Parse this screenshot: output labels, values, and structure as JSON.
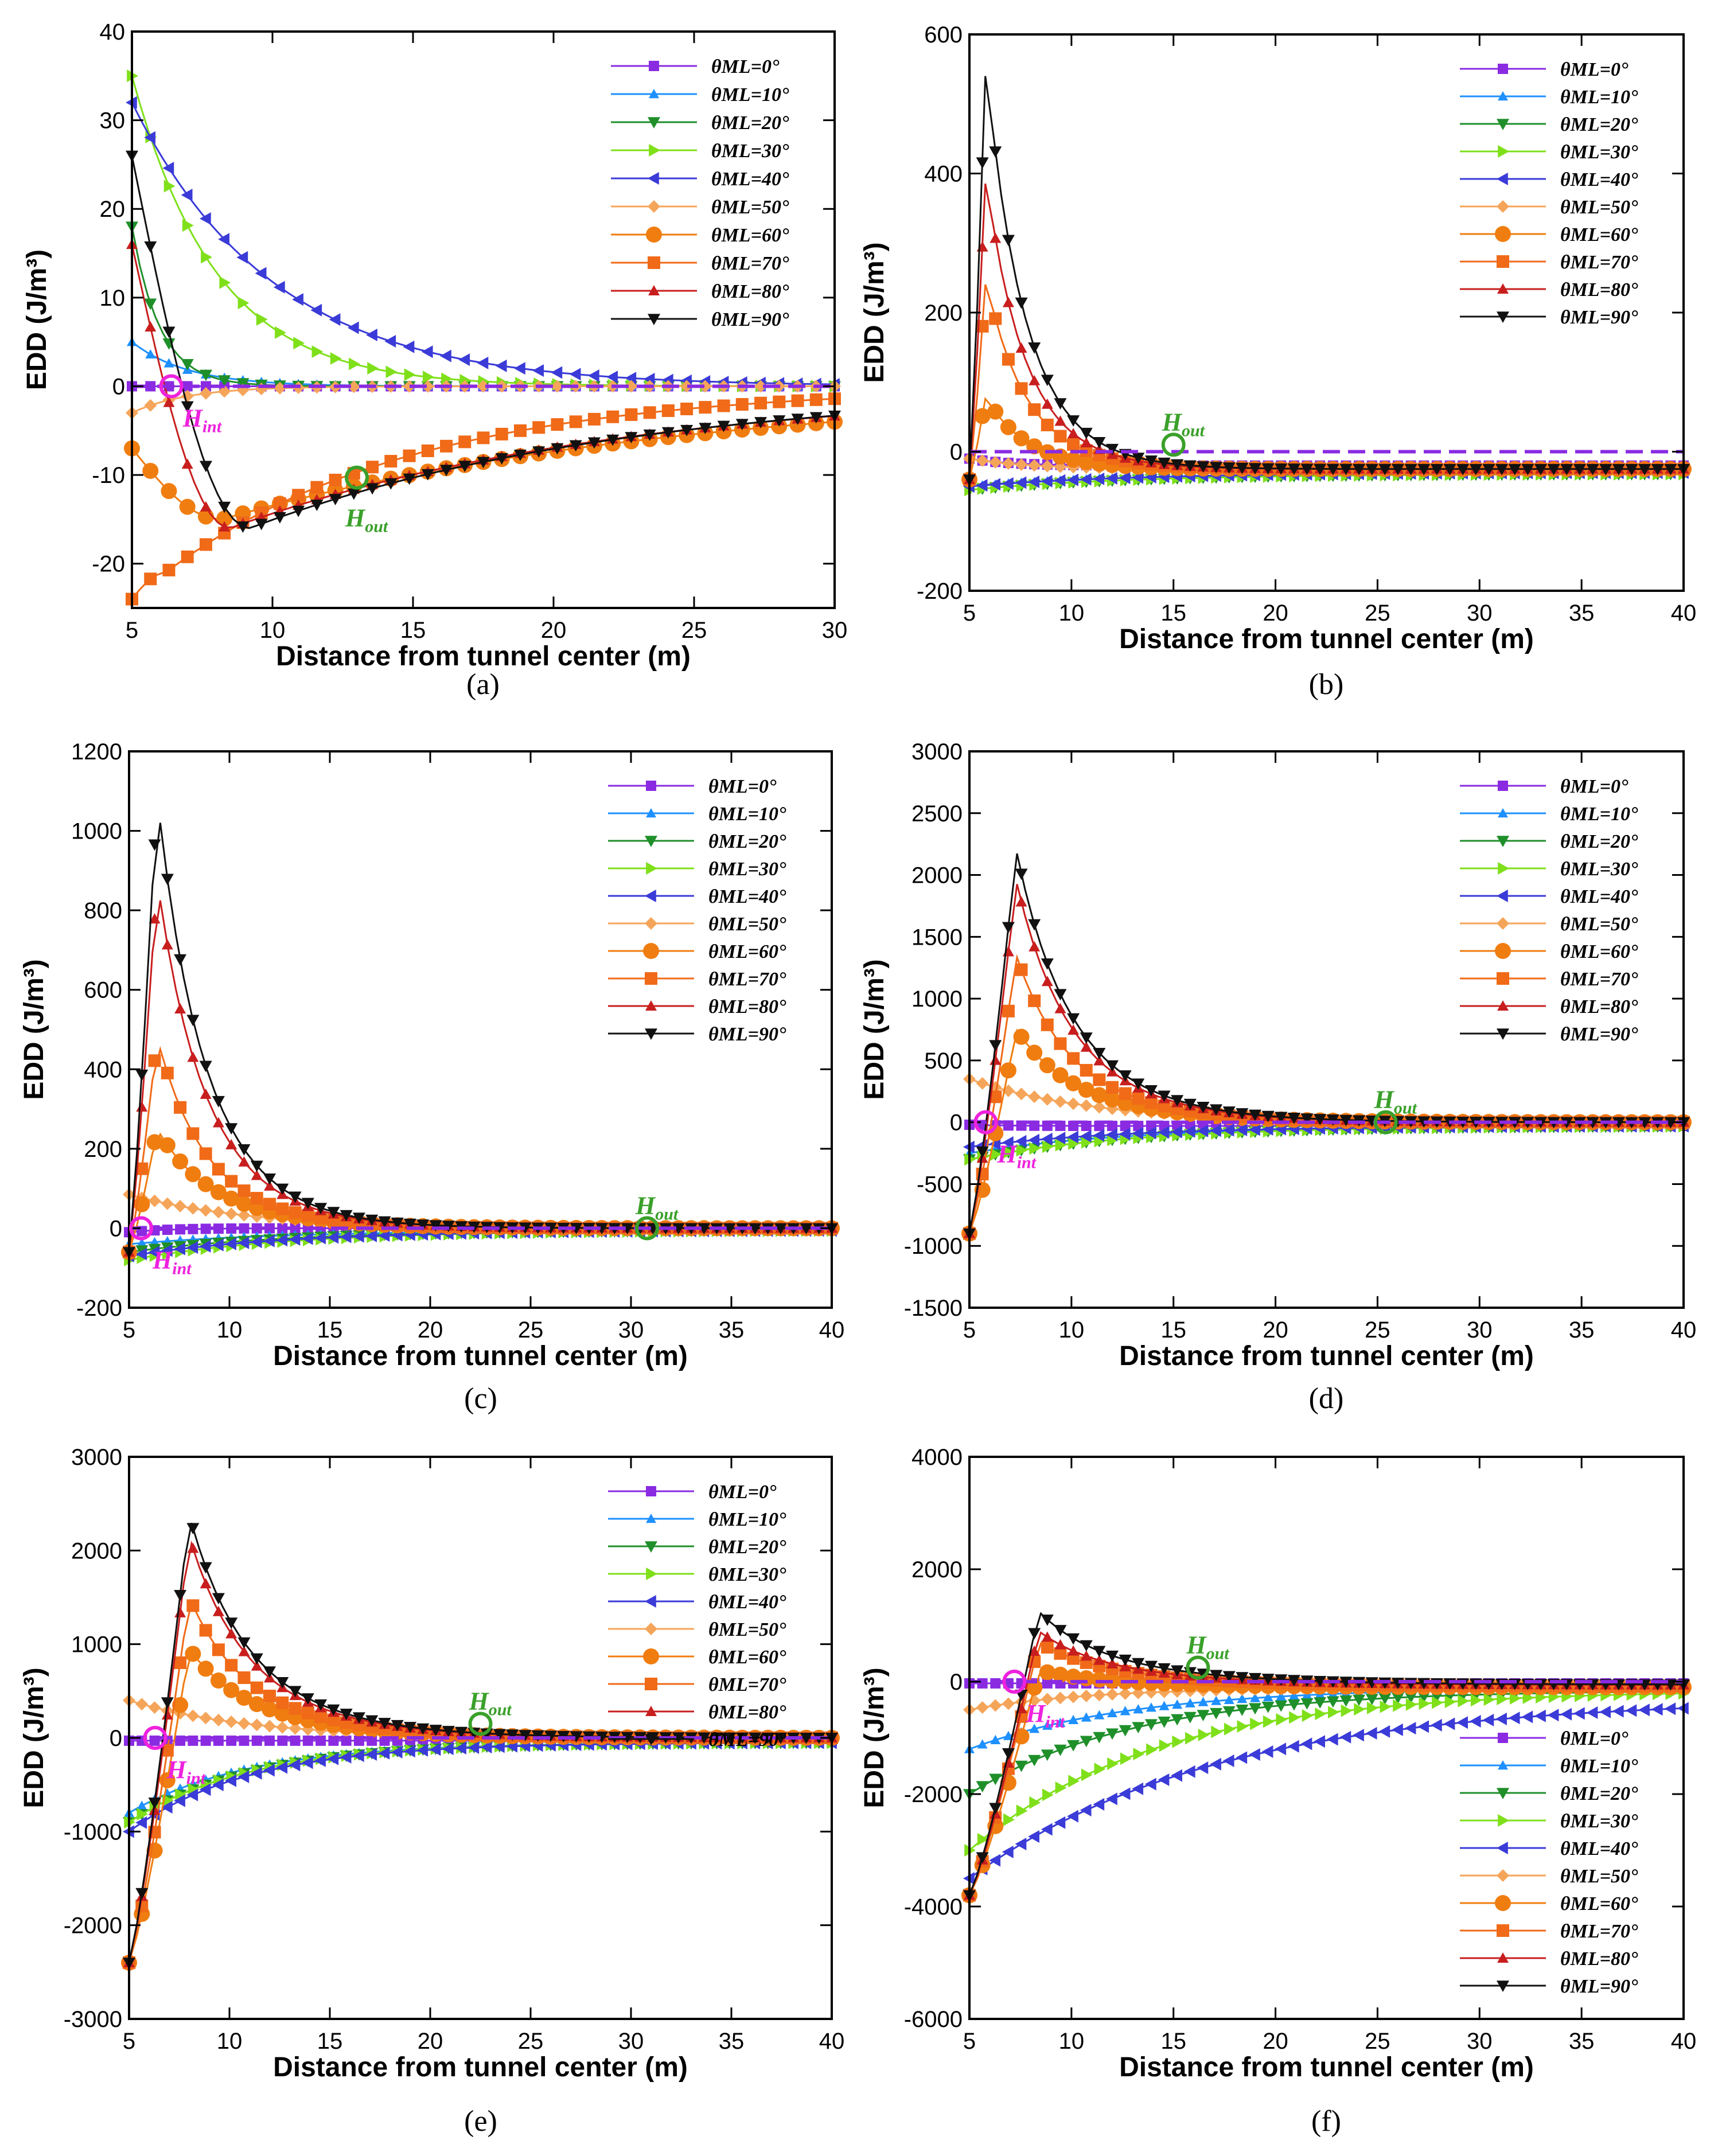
{
  "colors": {
    "s0": "#8a2be2",
    "s10": "#1e90ff",
    "s20": "#1f8f2a",
    "s30": "#7fe01a",
    "s40": "#3b3bd8",
    "s50": "#f5a55a",
    "s60": "#f07d10",
    "s70": "#f06a18",
    "s80": "#c81e1e",
    "s90": "#111111",
    "zero": "#8a2be2",
    "hint": "#ee22dd",
    "hout": "#3aa02a"
  },
  "legend_labels": [
    "θML=0°",
    "θML=10°",
    "θML=20°",
    "θML=30°",
    "θML=40°",
    "θML=50°",
    "θML=60°",
    "θML=70°",
    "θML=80°",
    "θML=90°"
  ],
  "chart_data": [
    {
      "type": "line",
      "caption": "(a)",
      "xlabel": "Distance from tunnel center (m)",
      "ylabel": "EDD (J/m³)",
      "xlim": [
        5,
        30
      ],
      "ylim": [
        -25,
        40
      ],
      "xticks": [
        "5",
        "10",
        "15",
        "20",
        "25",
        "30"
      ],
      "yticks": [
        "-20",
        "-10",
        "0",
        "10",
        "20",
        "30",
        "40"
      ],
      "legend_position": "top-right",
      "series_params": [
        [
          0,
          0,
          1
        ],
        [
          5,
          0,
          2
        ],
        [
          18,
          0,
          1
        ],
        [
          35,
          0,
          3
        ],
        [
          32,
          0,
          5
        ],
        [
          -3,
          0,
          2
        ],
        [
          -7,
          -12,
          3
        ],
        [
          -24,
          -12,
          1.6
        ],
        [
          16,
          -26,
          2.5
        ],
        [
          26,
          -25,
          2.4
        ]
      ],
      "annotations": [
        {
          "label": "H",
          "sub": "int",
          "x": 6.4,
          "y": 0
        },
        {
          "label": "H",
          "sub": "out",
          "x": 13,
          "y": -10.3
        }
      ]
    },
    {
      "type": "line",
      "caption": "(b)",
      "xlabel": "Distance from tunnel center (m)",
      "ylabel": "EDD (J/m³)",
      "xlim": [
        5,
        40
      ],
      "ylim": [
        -200,
        600
      ],
      "xticks": [
        "5",
        "10",
        "15",
        "20",
        "25",
        "30",
        "35",
        "40"
      ],
      "yticks": [
        "-200",
        "0",
        "200",
        "400",
        "600"
      ],
      "legend_position": "top-right",
      "series_params": [
        [
          -10,
          -20,
          2
        ],
        [
          -50,
          -30,
          8
        ],
        [
          -55,
          -32,
          8
        ],
        [
          -55,
          -32,
          8
        ],
        [
          -50,
          -30,
          8
        ],
        [
          -10,
          -25,
          3
        ],
        [
          80,
          -25,
          2.3
        ],
        [
          250,
          -25,
          2.3
        ],
        [
          400,
          -25,
          2.2
        ],
        [
          560,
          -25,
          2.2
        ]
      ],
      "annotations": [
        {
          "label": "H",
          "sub": "out",
          "x": 15,
          "y": 10
        }
      ]
    },
    {
      "type": "line",
      "caption": "(c)",
      "xlabel": "Distance from tunnel center (m)",
      "ylabel": "EDD (J/m³)",
      "xlim": [
        5,
        40
      ],
      "ylim": [
        -200,
        1200
      ],
      "xticks": [
        "5",
        "10",
        "15",
        "20",
        "25",
        "30",
        "35",
        "40"
      ],
      "yticks": [
        "-200",
        "0",
        "200",
        "400",
        "600",
        "800",
        "1000",
        "1200"
      ],
      "legend_position": "top-right",
      "series_params": [
        [
          -10,
          0,
          2
        ],
        [
          -40,
          -5,
          8
        ],
        [
          -60,
          -5,
          8
        ],
        [
          -80,
          -5,
          8
        ],
        [
          -70,
          -5,
          8
        ],
        [
          85,
          0,
          6
        ],
        [
          250,
          0,
          4
        ],
        [
          480,
          0,
          3.2
        ],
        [
          880,
          0,
          3.1
        ],
        [
          1090,
          0,
          3
        ]
      ],
      "annotations": [
        {
          "label": "H",
          "sub": "int",
          "x": 5.6,
          "y": 0
        },
        {
          "label": "H",
          "sub": "out",
          "x": 30.8,
          "y": 0
        }
      ]
    },
    {
      "type": "line",
      "caption": "(d)",
      "xlabel": "Distance from tunnel center (m)",
      "ylabel": "EDD (J/m³)",
      "xlim": [
        5,
        40
      ],
      "ylim": [
        -1500,
        3000
      ],
      "xticks": [
        "5",
        "10",
        "15",
        "20",
        "25",
        "30",
        "35",
        "40"
      ],
      "yticks": [
        "-1500",
        "-1000",
        "-500",
        "0",
        "500",
        "1000",
        "1500",
        "2000",
        "2500",
        "3000"
      ],
      "legend_position": "top-right",
      "series_params": [
        [
          -20,
          -30,
          2
        ],
        [
          -250,
          -30,
          8
        ],
        [
          -300,
          -30,
          8
        ],
        [
          -300,
          -30,
          8
        ],
        [
          -200,
          -30,
          8
        ],
        [
          350,
          0,
          6
        ],
        [
          750,
          0,
          4.5
        ],
        [
          1350,
          0,
          3.8
        ],
        [
          1950,
          0,
          3.8
        ],
        [
          2200,
          0,
          3.8
        ]
      ],
      "annotations": [
        {
          "label": "H",
          "sub": "int",
          "x": 5.8,
          "y": 0
        },
        {
          "label": "H",
          "sub": "out",
          "x": 25.4,
          "y": 0
        }
      ]
    },
    {
      "type": "line",
      "caption": "(e)",
      "xlabel": "Distance from tunnel center (m)",
      "ylabel": "EDD (J/m³)",
      "xlim": [
        5,
        40
      ],
      "ylim": [
        -3000,
        3000
      ],
      "xticks": [
        "5",
        "10",
        "15",
        "20",
        "25",
        "30",
        "35",
        "40"
      ],
      "yticks": [
        "-3000",
        "-2000",
        "-1000",
        "0",
        "1000",
        "2000",
        "3000"
      ],
      "legend_position": "top-right",
      "series_params": [
        [
          -30,
          -30,
          2
        ],
        [
          -800,
          -50,
          6
        ],
        [
          -900,
          -50,
          6
        ],
        [
          -900,
          -50,
          6
        ],
        [
          -1000,
          -50,
          6
        ],
        [
          400,
          0,
          6
        ],
        [
          950,
          0,
          5
        ],
        [
          1500,
          0,
          4.5
        ],
        [
          2150,
          0,
          4.5
        ],
        [
          2380,
          0,
          4.5
        ]
      ],
      "annotations": [
        {
          "label": "H",
          "sub": "int",
          "x": 6.3,
          "y": 0
        },
        {
          "label": "H",
          "sub": "out",
          "x": 22.5,
          "y": 150
        }
      ]
    },
    {
      "type": "line",
      "caption": "(f)",
      "xlabel": "Distance from tunnel center (m)",
      "ylabel": "EDD (J/m³)",
      "xlim": [
        5,
        40
      ],
      "ylim": [
        -6000,
        4000
      ],
      "xticks": [
        "5",
        "10",
        "15",
        "20",
        "25",
        "30",
        "35",
        "40"
      ],
      "yticks": [
        "-6000",
        "-4000",
        "-2000",
        "0",
        "2000",
        "4000"
      ],
      "legend_position": "bottom-right",
      "series_params": [
        [
          -30,
          -30,
          2
        ],
        [
          -1200,
          -100,
          8
        ],
        [
          -2000,
          -150,
          8
        ],
        [
          -3000,
          -150,
          9
        ],
        [
          -3500,
          -300,
          12
        ],
        [
          -500,
          -100,
          6
        ],
        [
          200,
          -100,
          6
        ],
        [
          700,
          -80,
          6
        ],
        [
          900,
          -60,
          6
        ],
        [
          1250,
          -50,
          6
        ]
      ],
      "annotations": [
        {
          "label": "H",
          "sub": "int",
          "x": 7.2,
          "y": 0
        },
        {
          "label": "H",
          "sub": "out",
          "x": 16.2,
          "y": 250
        }
      ]
    }
  ]
}
